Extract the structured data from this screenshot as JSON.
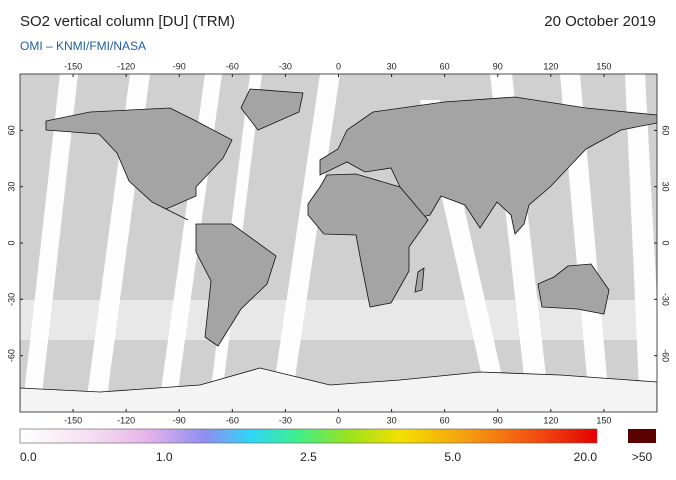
{
  "header": {
    "title": "SO2 vertical column [DU] (TRM)",
    "date": "20 October 2019",
    "subtitle": "OMI  –  KNMI/FMI/NASA"
  },
  "map": {
    "xlim": [
      -180,
      180
    ],
    "ylim": [
      -90,
      90
    ],
    "xticks": [
      -150,
      -120,
      -90,
      -60,
      -30,
      0,
      30,
      60,
      90,
      120,
      150
    ],
    "yticks": [
      60,
      30,
      0,
      -30,
      -60
    ]
  },
  "colorbar": {
    "labels": [
      "0.0",
      "1.0",
      "2.5",
      "5.0",
      "20.0"
    ],
    "overflow_label": ">50"
  }
}
